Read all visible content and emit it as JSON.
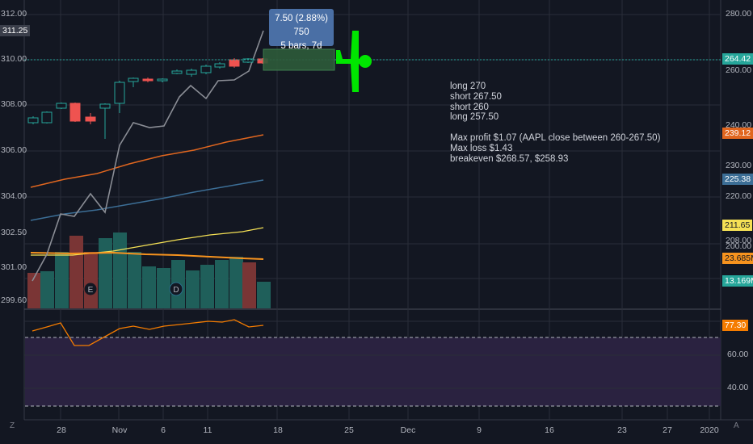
{
  "left_axis_ticks": [
    "312.00",
    "310.00",
    "308.00",
    "306.00",
    "304.00",
    "302.50",
    "301.00",
    "299.60"
  ],
  "left_axis_current": "311.25",
  "right_axis_ticks": [
    "280.00",
    "260.00",
    "240.00",
    "230.00",
    "220.00",
    "208.00",
    "200.00"
  ],
  "rsi_ticks": [
    "60.00",
    "40.00"
  ],
  "right_tags": [
    {
      "text": "264.42",
      "bg": "#26a69a",
      "fg": "#ffffff"
    },
    {
      "text": "239.12",
      "bg": "#e0661f",
      "fg": "#ffffff"
    },
    {
      "text": "225.38",
      "bg": "#3c6e96",
      "fg": "#ffffff"
    },
    {
      "text": "211.65",
      "bg": "#f5e155",
      "fg": "#131722"
    },
    {
      "text": "23.685M",
      "bg": "#f7931e",
      "fg": "#131722"
    },
    {
      "text": "13.169M",
      "bg": "#26a69a",
      "fg": "#ffffff"
    },
    {
      "text": "77.30",
      "bg": "#f57c00",
      "fg": "#ffffff"
    }
  ],
  "x_axis_labels": [
    "28",
    "Nov",
    "6",
    "11",
    "18",
    "25",
    "Dec",
    "9",
    "16",
    "23",
    "27",
    "2020"
  ],
  "callout": {
    "line1": "7.50 (2.88%) 750",
    "line2": "5 bars, 7d"
  },
  "notes": {
    "lines": [
      "long 270",
      "short 267.50",
      "short 260",
      "long 257.50",
      "",
      "Max profit $1.07 (AAPL close between 260-267.50)",
      "Max loss $1.43",
      "breakeven $268.57, $258.93"
    ]
  },
  "event_markers": [
    "E",
    "D"
  ],
  "corner_left_icon": "Z",
  "corner_right_icon": "A",
  "colors": {
    "bg": "#131722",
    "up": "#26a69a",
    "down": "#ef5350",
    "airplane": "#00e600",
    "rsi_band": "#2a2240"
  },
  "icons": {
    "airplane": "airplane-icon"
  }
}
